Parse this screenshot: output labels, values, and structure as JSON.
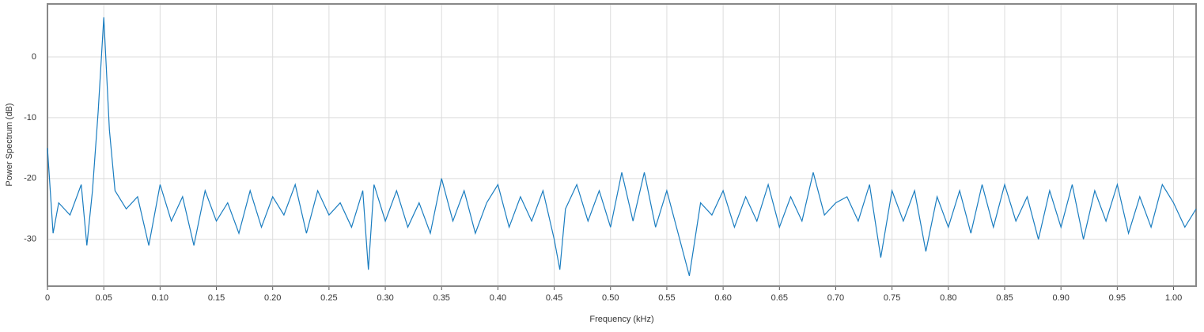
{
  "chart_data": {
    "type": "line",
    "xlabel": "Frequency (kHz)",
    "ylabel": "Power Spectrum (dB)",
    "x": [
      0,
      0.005,
      0.01,
      0.02,
      0.03,
      0.035,
      0.04,
      0.045,
      0.05,
      0.055,
      0.06,
      0.07,
      0.08,
      0.09,
      0.1,
      0.11,
      0.12,
      0.13,
      0.14,
      0.15,
      0.16,
      0.17,
      0.18,
      0.19,
      0.2,
      0.21,
      0.22,
      0.23,
      0.24,
      0.25,
      0.26,
      0.27,
      0.28,
      0.285,
      0.29,
      0.3,
      0.31,
      0.32,
      0.33,
      0.34,
      0.35,
      0.36,
      0.37,
      0.38,
      0.39,
      0.4,
      0.41,
      0.42,
      0.43,
      0.44,
      0.45,
      0.455,
      0.46,
      0.47,
      0.48,
      0.49,
      0.5,
      0.51,
      0.52,
      0.53,
      0.54,
      0.55,
      0.56,
      0.57,
      0.58,
      0.59,
      0.6,
      0.61,
      0.62,
      0.63,
      0.64,
      0.65,
      0.66,
      0.67,
      0.68,
      0.69,
      0.7,
      0.71,
      0.72,
      0.73,
      0.74,
      0.75,
      0.76,
      0.77,
      0.78,
      0.79,
      0.8,
      0.81,
      0.82,
      0.83,
      0.84,
      0.85,
      0.86,
      0.87,
      0.88,
      0.89,
      0.9,
      0.91,
      0.92,
      0.93,
      0.94,
      0.95,
      0.96,
      0.97,
      0.98,
      0.99,
      1.0,
      1.01,
      1.02
    ],
    "series": [
      {
        "color": "#1a7dc0",
        "values": [
          -15,
          -29,
          -24,
          -26,
          -21,
          -31,
          -22,
          -9,
          6.5,
          -12,
          -22,
          -25,
          -23,
          -31,
          -21,
          -27,
          -23,
          -31,
          -22,
          -27,
          -24,
          -29,
          -22,
          -28,
          -23,
          -26,
          -21,
          -29,
          -22,
          -26,
          -24,
          -28,
          -22,
          -35,
          -21,
          -27,
          -22,
          -28,
          -24,
          -29,
          -20,
          -27,
          -22,
          -29,
          -24,
          -21,
          -28,
          -23,
          -27,
          -22,
          -30,
          -35,
          -25,
          -21,
          -27,
          -22,
          -28,
          -19,
          -27,
          -19,
          -28,
          -22,
          -29,
          -36,
          -24,
          -26,
          -22,
          -28,
          -23,
          -27,
          -21,
          -28,
          -23,
          -27,
          -19,
          -26,
          -24,
          -23,
          -27,
          -21,
          -33,
          -22,
          -27,
          -22,
          -32,
          -23,
          -28,
          -22,
          -29,
          -21,
          -28,
          -21,
          -27,
          -23,
          -30,
          -22,
          -28,
          -21,
          -30,
          -22,
          -27,
          -21,
          -29,
          -23,
          -28,
          -21,
          -24,
          -28,
          -25
        ]
      }
    ],
    "xlim": [
      0,
      1.02
    ],
    "ylim": [
      -37.7,
      8.7
    ],
    "xticks": [
      0,
      0.05,
      {
        "value": 0.1,
        "label": "0.10"
      },
      0.15,
      {
        "value": 0.2,
        "label": "0.20"
      },
      0.25,
      {
        "value": 0.3,
        "label": "0.30"
      },
      0.35,
      {
        "value": 0.4,
        "label": "0.40"
      },
      0.45,
      {
        "value": 0.5,
        "label": "0.50"
      },
      0.55,
      {
        "value": 0.6,
        "label": "0.60"
      },
      0.65,
      {
        "value": 0.7,
        "label": "0.70"
      },
      0.75,
      {
        "value": 0.8,
        "label": "0.80"
      },
      0.85,
      {
        "value": 0.9,
        "label": "0.90"
      },
      0.95,
      {
        "value": 1.0,
        "label": "1.00"
      }
    ],
    "yticks": [
      -30,
      -20,
      -10,
      0
    ],
    "grid": true
  }
}
